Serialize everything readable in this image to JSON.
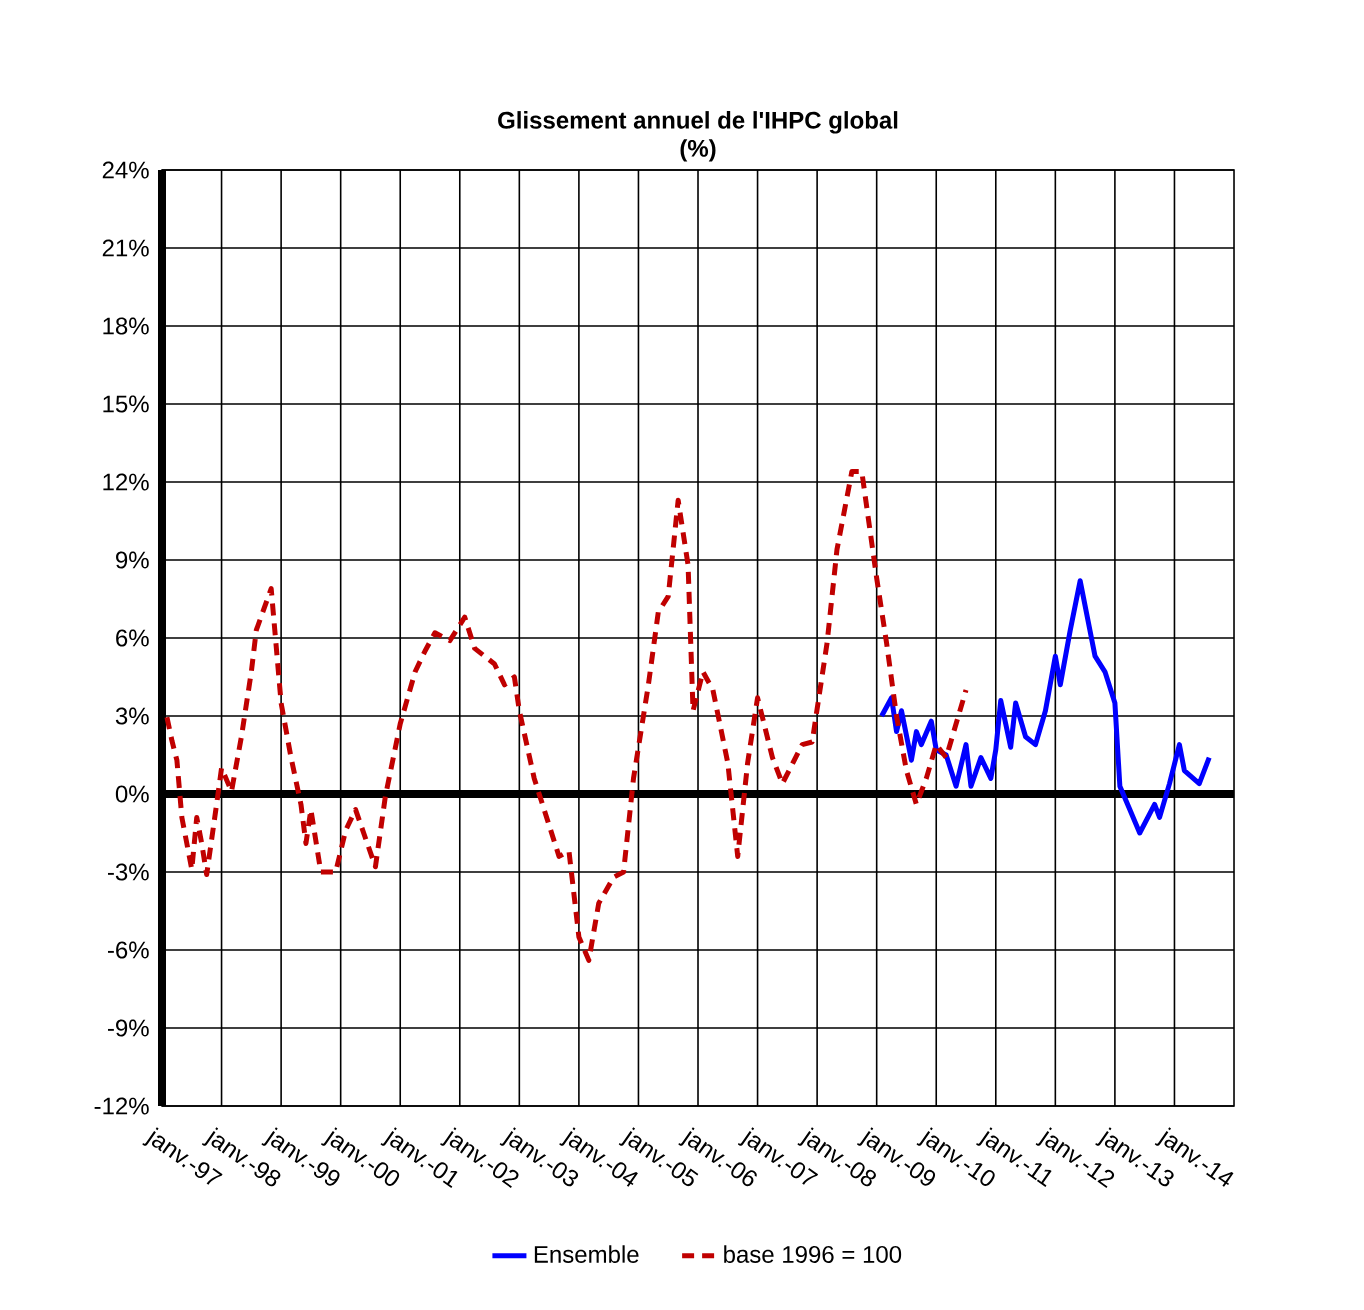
{
  "chart_data": {
    "type": "line",
    "title": "Glissement annuel de l'IHPC global",
    "subtitle": "(%)",
    "xlim": [
      "1997-01",
      "2015-01"
    ],
    "xticks": [
      {
        "value": "1997-01",
        "label": "janv.-97"
      },
      {
        "value": "1998-01",
        "label": "janv.-98"
      },
      {
        "value": "1999-01",
        "label": "janv.-99"
      },
      {
        "value": "2000-01",
        "label": "janv.-00"
      },
      {
        "value": "2001-01",
        "label": "janv.-01"
      },
      {
        "value": "2002-01",
        "label": "janv.-02"
      },
      {
        "value": "2003-01",
        "label": "janv.-03"
      },
      {
        "value": "2004-01",
        "label": "janv.-04"
      },
      {
        "value": "2005-01",
        "label": "janv.-05"
      },
      {
        "value": "2006-01",
        "label": "janv.-06"
      },
      {
        "value": "2007-01",
        "label": "janv.-07"
      },
      {
        "value": "2008-01",
        "label": "janv.-08"
      },
      {
        "value": "2009-01",
        "label": "janv.-09"
      },
      {
        "value": "2010-01",
        "label": "janv.-10"
      },
      {
        "value": "2011-01",
        "label": "janv.-11"
      },
      {
        "value": "2012-01",
        "label": "janv.-12"
      },
      {
        "value": "2013-01",
        "label": "janv.-13"
      },
      {
        "value": "2014-01",
        "label": "janv.-14"
      }
    ],
    "ylim": [
      -12,
      24
    ],
    "yticks": [
      {
        "value": -12,
        "label": "-12%"
      },
      {
        "value": -9,
        "label": "-9%"
      },
      {
        "value": -6,
        "label": "-6%"
      },
      {
        "value": -3,
        "label": "-3%"
      },
      {
        "value": 0,
        "label": "0%"
      },
      {
        "value": 3,
        "label": "3%"
      },
      {
        "value": 6,
        "label": "6%"
      },
      {
        "value": 9,
        "label": "9%"
      },
      {
        "value": 12,
        "label": "12%"
      },
      {
        "value": 15,
        "label": "15%"
      },
      {
        "value": 18,
        "label": "18%"
      },
      {
        "value": 21,
        "label": "21%"
      },
      {
        "value": 24,
        "label": "24%"
      }
    ],
    "grid": true,
    "legend": "bottom",
    "series": [
      {
        "name": "Ensemble",
        "color": "#0000ff",
        "line_style": "solid",
        "x": [
          "2009-02",
          "2009-04",
          "2009-05",
          "2009-06",
          "2009-08",
          "2009-09",
          "2009-10",
          "2009-12",
          "2010-01",
          "2010-03",
          "2010-05",
          "2010-07",
          "2010-08",
          "2010-10",
          "2010-12",
          "2011-01",
          "2011-02",
          "2011-04",
          "2011-05",
          "2011-07",
          "2011-09",
          "2011-11",
          "2012-01",
          "2012-02",
          "2012-04",
          "2012-06",
          "2012-09",
          "2012-11",
          "2013-01",
          "2013-02",
          "2013-04",
          "2013-06",
          "2013-09",
          "2013-10",
          "2013-12",
          "2014-02",
          "2014-03",
          "2014-06",
          "2014-08"
        ],
        "values": [
          3.0,
          3.7,
          2.4,
          3.2,
          1.3,
          2.4,
          1.9,
          2.8,
          1.7,
          1.5,
          0.3,
          1.9,
          0.3,
          1.4,
          0.6,
          1.7,
          3.6,
          1.8,
          3.5,
          2.2,
          1.9,
          3.2,
          5.3,
          4.2,
          6.3,
          8.2,
          5.3,
          4.7,
          3.5,
          0.3,
          -0.6,
          -1.5,
          -0.4,
          -0.9,
          0.4,
          1.9,
          0.9,
          0.4,
          1.4
        ]
      },
      {
        "name": "base 1996 = 100",
        "color": "#c00000",
        "line_style": "dashed",
        "x": [
          "1997-02",
          "1997-03",
          "1997-04",
          "1997-05",
          "1997-07",
          "1997-08",
          "1997-09",
          "1997-10",
          "1997-12",
          "1998-01",
          "1998-03",
          "1998-05",
          "1998-07",
          "1998-08",
          "1998-11",
          "1999-01",
          "1999-03",
          "1999-05",
          "1999-06",
          "1999-07",
          "1999-09",
          "1999-12",
          "2000-02",
          "2000-04",
          "2000-06",
          "2000-08",
          "2000-10",
          "2001-01",
          "2001-04",
          "2001-06",
          "2001-08",
          "2001-11",
          "2002-02",
          "2002-04",
          "2002-08",
          "2002-10",
          "2002-12",
          "2003-01",
          "2003-04",
          "2003-07",
          "2003-09",
          "2003-11",
          "2004-01",
          "2004-03",
          "2004-05",
          "2004-08",
          "2004-10",
          "2004-12",
          "2005-03",
          "2005-05",
          "2005-07",
          "2005-09",
          "2005-11",
          "2005-12",
          "2006-02",
          "2006-04",
          "2006-07",
          "2006-09",
          "2006-11",
          "2007-01",
          "2007-04",
          "2007-06",
          "2007-10",
          "2007-12",
          "2008-03",
          "2008-05",
          "2008-08",
          "2008-10",
          "2009-01",
          "2009-03",
          "2009-05",
          "2009-07",
          "2009-09",
          "2009-11",
          "2010-01",
          "2010-03",
          "2010-05",
          "2010-07"
        ],
        "values": [
          2.95,
          2.05,
          1.3,
          -0.9,
          -2.9,
          -0.9,
          -1.9,
          -3.1,
          -0.4,
          1.0,
          0.1,
          2.2,
          4.7,
          6.3,
          7.9,
          3.5,
          1.4,
          -0.4,
          -1.9,
          -0.6,
          -3.0,
          -3.0,
          -1.4,
          -0.6,
          -1.7,
          -2.8,
          -0.1,
          2.7,
          4.7,
          5.5,
          6.2,
          5.9,
          6.8,
          5.6,
          5.0,
          4.2,
          4.5,
          3.2,
          0.6,
          -1.2,
          -2.4,
          -2.2,
          -5.5,
          -6.4,
          -4.2,
          -3.2,
          -3.0,
          0.6,
          4.2,
          7.0,
          7.6,
          11.3,
          8.8,
          3.2,
          4.7,
          4.0,
          1.2,
          -2.4,
          1.2,
          3.7,
          1.4,
          0.4,
          1.9,
          2.0,
          5.8,
          9.4,
          12.4,
          12.4,
          8.3,
          5.8,
          3.0,
          0.9,
          -0.4,
          0.6,
          1.9,
          1.4,
          2.7,
          4.0
        ]
      }
    ]
  }
}
